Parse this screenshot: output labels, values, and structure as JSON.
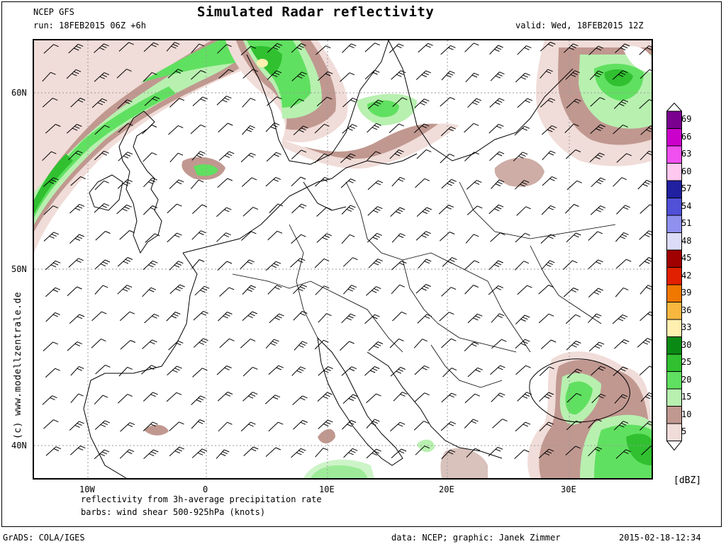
{
  "header": {
    "model": "NCEP GFS",
    "run": "run: 18FEB2015 06Z +6h",
    "title": "Simulated Radar reflectivity",
    "valid": "valid: Wed, 18FEB2015 12Z"
  },
  "map": {
    "lon_labels": [
      "10W",
      "0",
      "10E",
      "20E",
      "30E"
    ],
    "lat_labels": [
      "60N",
      "50N",
      "40N"
    ]
  },
  "legend": {
    "unit": "[dBZ]",
    "levels": [
      {
        "value": "69",
        "color": "#7a0090"
      },
      {
        "value": "66",
        "color": "#cc00cc"
      },
      {
        "value": "63",
        "color": "#f050f0"
      },
      {
        "value": "60",
        "color": "#ffc8f0"
      },
      {
        "value": "57",
        "color": "#2020a0"
      },
      {
        "value": "54",
        "color": "#5050d8"
      },
      {
        "value": "51",
        "color": "#9090f0"
      },
      {
        "value": "48",
        "color": "#dcdcf8"
      },
      {
        "value": "45",
        "color": "#a00000"
      },
      {
        "value": "42",
        "color": "#e02000"
      },
      {
        "value": "39",
        "color": "#f07800"
      },
      {
        "value": "36",
        "color": "#f8b840"
      },
      {
        "value": "33",
        "color": "#fff0b0"
      },
      {
        "value": "30",
        "color": "#0a8a14"
      },
      {
        "value": "25",
        "color": "#30c030"
      },
      {
        "value": "20",
        "color": "#60e060"
      },
      {
        "value": "15",
        "color": "#b8f0b0"
      },
      {
        "value": "10",
        "color": "#c09890"
      },
      {
        "value": "5",
        "color": "#f0dcd8"
      }
    ]
  },
  "footer": {
    "line1": "reflectivity from 3h-average precipitation rate",
    "line2": "barbs: wind shear 500-925hPa (knots)",
    "grads": "GrADS: COLA/IGES",
    "data": "data: NCEP; graphic: Janek Zimmer",
    "timestamp": "2015-02-18-12:34",
    "credit": "(c) www.modellzentrale.de"
  }
}
